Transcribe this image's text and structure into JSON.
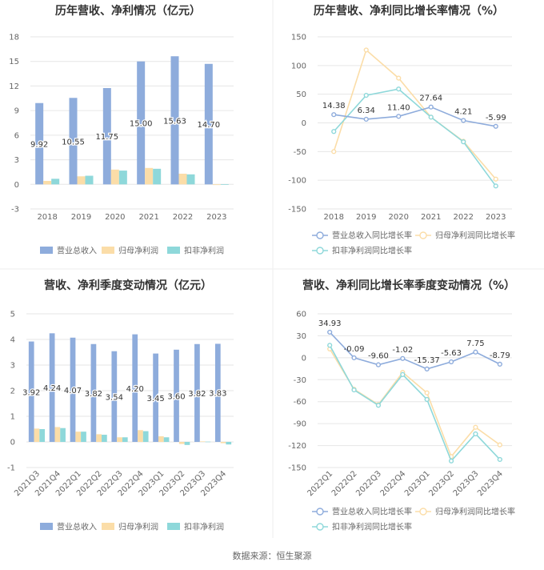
{
  "colors": {
    "revenue": "#8EACDC",
    "net_profit": "#FBDDA8",
    "deducted_profit": "#8ED8DA"
  },
  "source": "数据来源：恒生聚源",
  "chart_data": [
    {
      "id": "annual-amount",
      "type": "bar",
      "title": "历年营收、净利情况（亿元）",
      "categories": [
        "2018",
        "2019",
        "2020",
        "2021",
        "2022",
        "2023"
      ],
      "ylim": [
        -3,
        18
      ],
      "yticks": [
        -3,
        0,
        3,
        6,
        9,
        12,
        15,
        18
      ],
      "series": [
        {
          "name": "营业总收入",
          "values": [
            9.92,
            10.55,
            11.75,
            15.0,
            15.63,
            14.7
          ],
          "labels": [
            "9.92",
            "10.55",
            "11.75",
            "15.00",
            "15.63",
            "14.70"
          ]
        },
        {
          "name": "归母净利润",
          "values": [
            0.42,
            0.98,
            1.8,
            2.0,
            1.3,
            -0.08
          ]
        },
        {
          "name": "扣非净利润",
          "values": [
            0.68,
            1.05,
            1.68,
            1.9,
            1.22,
            -0.07
          ]
        }
      ],
      "legend": "bottom"
    },
    {
      "id": "annual-growth",
      "type": "line",
      "title": "历年营收、净利同比增长率情况（%）",
      "categories": [
        "2018",
        "2019",
        "2020",
        "2021",
        "2022",
        "2023"
      ],
      "ylim": [
        -150,
        150
      ],
      "yticks": [
        -150,
        -100,
        -50,
        0,
        50,
        100,
        150
      ],
      "series": [
        {
          "name": "营业总收入同比增长率",
          "values": [
            14.38,
            6.34,
            11.4,
            27.64,
            4.21,
            -5.99
          ],
          "labels": [
            "14.38",
            "6.34",
            "11.40",
            "27.64",
            "4.21",
            "-5.99"
          ]
        },
        {
          "name": "归母净利润同比增长率",
          "values": [
            -50,
            127,
            78,
            10,
            -32,
            -98
          ]
        },
        {
          "name": "扣非净利润同比增长率",
          "values": [
            -15,
            48,
            59,
            10,
            -33,
            -110
          ]
        }
      ],
      "legend": "bottom"
    },
    {
      "id": "quarterly-amount",
      "type": "bar",
      "title": "营收、净利季度变动情况（亿元）",
      "categories": [
        "2021Q3",
        "2021Q4",
        "2022Q1",
        "2022Q2",
        "2022Q3",
        "2022Q4",
        "2023Q1",
        "2023Q2",
        "2023Q3",
        "2023Q4"
      ],
      "ylim": [
        -1,
        5
      ],
      "yticks": [
        -1,
        0,
        1,
        2,
        3,
        4,
        5
      ],
      "series": [
        {
          "name": "营业总收入",
          "values": [
            3.92,
            4.24,
            4.07,
            3.82,
            3.54,
            4.2,
            3.45,
            3.6,
            3.82,
            3.83
          ],
          "labels": [
            "3.92",
            "4.24",
            "4.07",
            "3.82",
            "3.54",
            "4.20",
            "3.45",
            "3.60",
            "3.82",
            "3.83"
          ]
        },
        {
          "name": "归母净利润",
          "values": [
            0.52,
            0.58,
            0.4,
            0.3,
            0.18,
            0.46,
            0.22,
            -0.08,
            0.02,
            -0.05
          ]
        },
        {
          "name": "扣非净利润",
          "values": [
            0.5,
            0.54,
            0.4,
            0.28,
            0.18,
            0.42,
            0.18,
            -0.12,
            0.01,
            -0.1
          ]
        }
      ],
      "legend": "bottom"
    },
    {
      "id": "quarterly-growth",
      "type": "line",
      "title": "营收、净利同比增长率季度变动情况（%）",
      "categories": [
        "2022Q1",
        "2022Q2",
        "2022Q3",
        "2022Q4",
        "2023Q1",
        "2023Q2",
        "2023Q3",
        "2023Q4"
      ],
      "ylim": [
        -150,
        60
      ],
      "yticks": [
        -150,
        -120,
        -90,
        -60,
        -30,
        0,
        30,
        60
      ],
      "series": [
        {
          "name": "营业总收入同比增长率",
          "values": [
            34.93,
            -0.09,
            -9.6,
            -1.02,
            -15.37,
            -5.63,
            7.75,
            -8.79
          ],
          "labels": [
            "34.93",
            "-0.09",
            "-9.60",
            "-1.02",
            "-15.37",
            "-5.63",
            "7.75",
            "-8.79"
          ]
        },
        {
          "name": "归母净利润同比增长率",
          "values": [
            12,
            -43,
            -64,
            -20,
            -48,
            -135,
            -95,
            -119
          ]
        },
        {
          "name": "扣非净利润同比增长率",
          "values": [
            17,
            -44,
            -65,
            -23,
            -57,
            -141,
            -104,
            -139
          ]
        }
      ],
      "legend": "bottom"
    }
  ]
}
